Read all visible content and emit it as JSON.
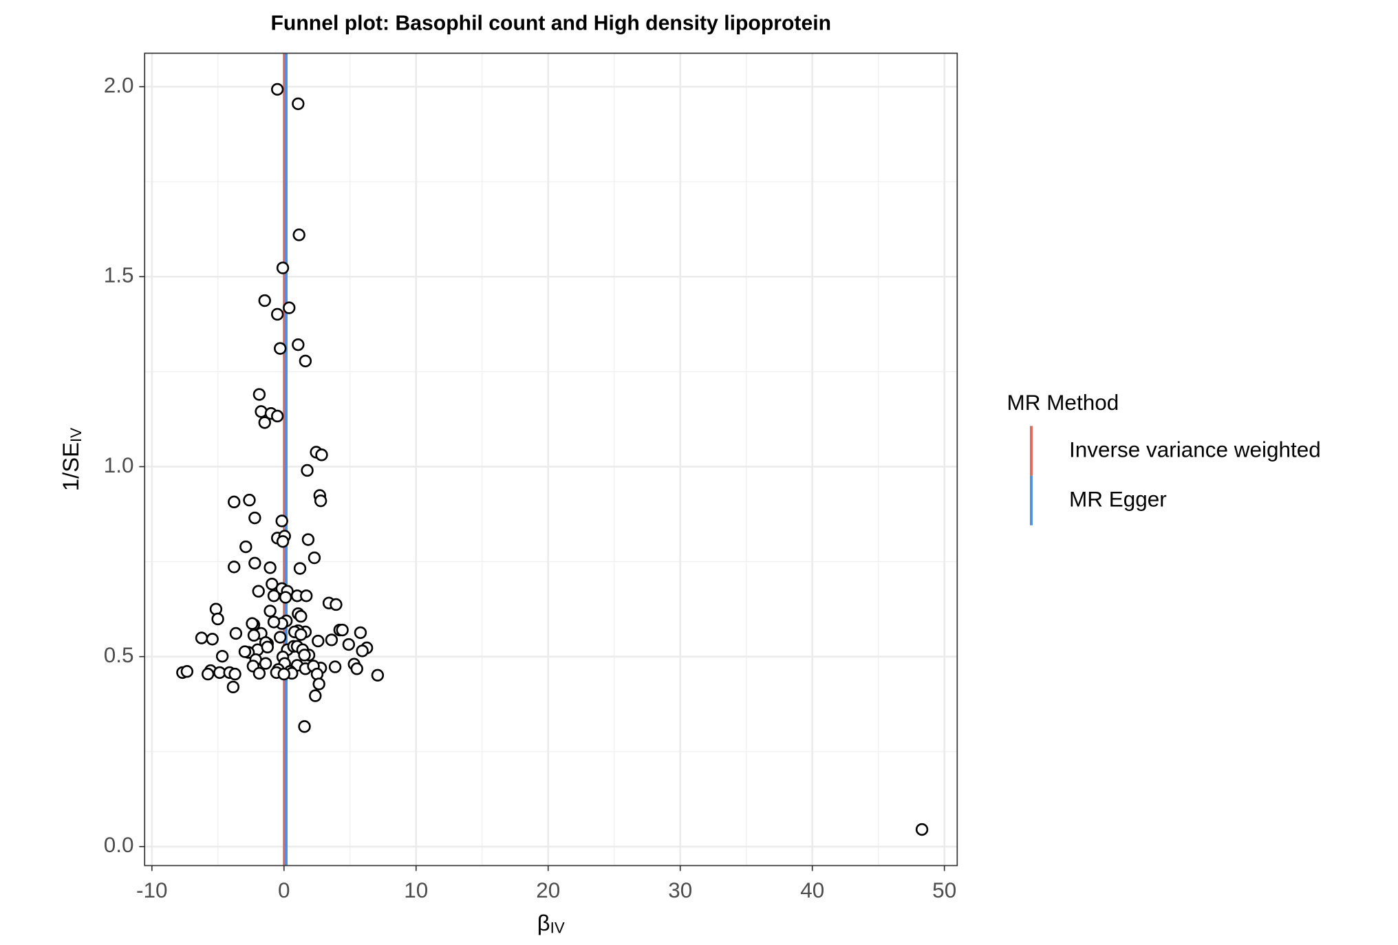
{
  "chart_data": {
    "type": "scatter",
    "title": "Funnel plot: Basophil count and High density lipoprotein",
    "x_label": {
      "text": "β",
      "subscript": "IV"
    },
    "y_label": {
      "text": "1/SE",
      "subscript": "IV"
    },
    "legend_title": "MR Method",
    "legend_position": "right",
    "grid": true,
    "point_fill": "#ffffff",
    "point_stroke": "#000000",
    "xlim": [
      -10.55,
      50.97
    ],
    "ylim": [
      -0.05,
      2.088
    ],
    "xticks": [
      -10,
      0,
      10,
      20,
      30,
      40,
      50
    ],
    "yticks": [
      {
        "value": 0,
        "label": "0.0"
      },
      0.5,
      {
        "value": 1,
        "label": "1.0"
      },
      1.5,
      {
        "value": 2,
        "label": "2.0"
      }
    ],
    "lines": [
      {
        "name": "Inverse variance weighted",
        "color": "#e0695a",
        "x": 0.02
      },
      {
        "name": "MR Egger",
        "color": "#4a90e8",
        "x": 0.17
      }
    ],
    "x": [
      -0.5,
      1.07,
      1.14,
      -0.09,
      -1.46,
      -0.5,
      0.39,
      -0.29,
      1.07,
      1.62,
      -1.87,
      -1.73,
      -0.98,
      -1.46,
      -0.5,
      2.44,
      2.85,
      1.76,
      2.71,
      2.78,
      -3.78,
      -2.62,
      -2.21,
      -0.16,
      -2.89,
      -0.5,
      0.05,
      -0.09,
      1.83,
      2.3,
      -3.78,
      -2.21,
      -1.05,
      1.21,
      -0.91,
      -1.93,
      -0.16,
      0.25,
      0.12,
      1.0,
      1.69,
      -0.77,
      3.4,
      3.94,
      -5.15,
      -5.01,
      -1.05,
      1.07,
      1.28,
      0.18,
      -0.16,
      -2.28,
      -2.41,
      -0.77,
      4.22,
      4.42,
      -3.64,
      -1.73,
      1.62,
      1.07,
      0.8,
      5.79,
      -6.24,
      -5.42,
      3.6,
      2.58,
      -2.28,
      -1.25,
      -1.39,
      -0.29,
      1.28,
      4.9,
      6.27,
      5.93,
      -2.0,
      -1.25,
      -2.69,
      -2.96,
      0.25,
      0.73,
      1.0,
      1.41,
      1.89,
      1.55,
      -4.67,
      -0.09,
      -2.14,
      5.31,
      5.52,
      3.87,
      0.05,
      1.0,
      -1.39,
      -2.34,
      -0.43,
      -0.57,
      0.46,
      1.62,
      2.78,
      2.23,
      -7.68,
      -7.34,
      -5.56,
      -4.87,
      -5.76,
      -4.12,
      -3.71,
      -1.87,
      0.6,
      0.0,
      2.51,
      7.09,
      -3.85,
      2.65,
      2.37,
      1.55,
      48.3
    ],
    "y": [
      1.993,
      1.955,
      1.61,
      1.523,
      1.437,
      1.401,
      1.418,
      1.311,
      1.321,
      1.278,
      1.19,
      1.145,
      1.14,
      1.116,
      1.133,
      1.038,
      1.031,
      0.99,
      0.924,
      0.91,
      0.907,
      0.912,
      0.865,
      0.857,
      0.789,
      0.812,
      0.817,
      0.803,
      0.808,
      0.76,
      0.736,
      0.746,
      0.734,
      0.732,
      0.691,
      0.672,
      0.679,
      0.672,
      0.656,
      0.66,
      0.66,
      0.66,
      0.641,
      0.637,
      0.625,
      0.599,
      0.62,
      0.613,
      0.606,
      0.594,
      0.587,
      0.584,
      0.587,
      0.591,
      0.57,
      0.57,
      0.561,
      0.561,
      0.565,
      0.568,
      0.565,
      0.563,
      0.549,
      0.546,
      0.544,
      0.541,
      0.556,
      0.534,
      0.537,
      0.551,
      0.558,
      0.532,
      0.523,
      0.515,
      0.518,
      0.525,
      0.511,
      0.513,
      0.518,
      0.527,
      0.527,
      0.518,
      0.504,
      0.504,
      0.501,
      0.499,
      0.492,
      0.48,
      0.468,
      0.473,
      0.482,
      0.477,
      0.482,
      0.475,
      0.466,
      0.458,
      0.461,
      0.468,
      0.47,
      0.475,
      0.458,
      0.461,
      0.463,
      0.458,
      0.454,
      0.458,
      0.454,
      0.456,
      0.456,
      0.454,
      0.454,
      0.451,
      0.42,
      0.428,
      0.397,
      0.316,
      0.045
    ]
  }
}
